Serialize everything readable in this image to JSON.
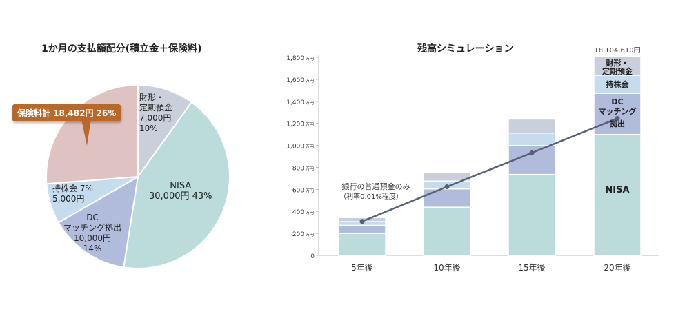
{
  "chart_data": [
    {
      "type": "pie",
      "title": "1か月の支払額配分(積立金＋保険料)",
      "slices": [
        {
          "label": "財形・定期預金",
          "amount": "7,000円",
          "percent": "10%",
          "value": 7000,
          "color": "#c9cfdb"
        },
        {
          "label": "NISA",
          "amount": "30,000円",
          "percent": "43%",
          "value": 30000,
          "color": "#bcdcdc"
        },
        {
          "label": "DCマッチング拠出",
          "amount": "10,000円",
          "percent": "14%",
          "value": 10000,
          "color": "#b1bbdc"
        },
        {
          "label": "持株会",
          "amount": "5,000円",
          "percent": "7%",
          "value": 5000,
          "color": "#c4dcee"
        },
        {
          "label": "保険料計",
          "amount": "18,482円",
          "percent": "26%",
          "value": 18482,
          "color": "#dfc3c3"
        }
      ],
      "labels": {
        "zaikei_1": "財形・",
        "zaikei_2": "定期預金",
        "zaikei_3": "7,000円",
        "zaikei_4": "10%",
        "nisa_1": "NISA",
        "nisa_2": "30,000円 43%",
        "dc_1": "DC",
        "dc_2": "マッチング拠出",
        "dc_3": "10,000円",
        "dc_4": "14%",
        "mochi_1": "持株会 7%",
        "mochi_2": "5,000円",
        "callout": "保険料計 18,482円 26%"
      },
      "callout_color": "#b8692a"
    },
    {
      "type": "bar",
      "stacked": true,
      "title": "残高シミュレーション",
      "categories": [
        "5年後",
        "10年後",
        "15年後",
        "20年後"
      ],
      "yunit": "万円",
      "ylim": [
        0,
        1800
      ],
      "yticks": [
        0,
        200,
        400,
        600,
        800,
        1000,
        1200,
        1400,
        1600,
        1800
      ],
      "series": [
        {
          "name": "NISA",
          "values": [
            200,
            438,
            736,
            1099
          ],
          "color": "#bcdcdc"
        },
        {
          "name": "DC マッチング 拠出",
          "values": [
            73,
            167,
            263,
            374
          ],
          "color": "#b1bbdc"
        },
        {
          "name": "持株会",
          "values": [
            34,
            71,
            113,
            164
          ],
          "color": "#c4dcee"
        },
        {
          "name": "財形・定期預金",
          "values": [
            37,
            75,
            127,
            173
          ],
          "color": "#c9cfdb"
        }
      ],
      "line": {
        "name": "銀行の普通預金のみ",
        "note": "（利率0.01%程度）",
        "values": [
          309,
          624,
          932,
          1245
        ],
        "color": "#566173"
      },
      "total_label": "18,104,610円",
      "segment_labels": {
        "zaikei_1": "財形・",
        "zaikei_2": "定期預金",
        "mochi": "持株会",
        "dc_1": "DC",
        "dc_2": "マッチング",
        "dc_3": "拠出",
        "nisa": "NISA"
      }
    }
  ]
}
